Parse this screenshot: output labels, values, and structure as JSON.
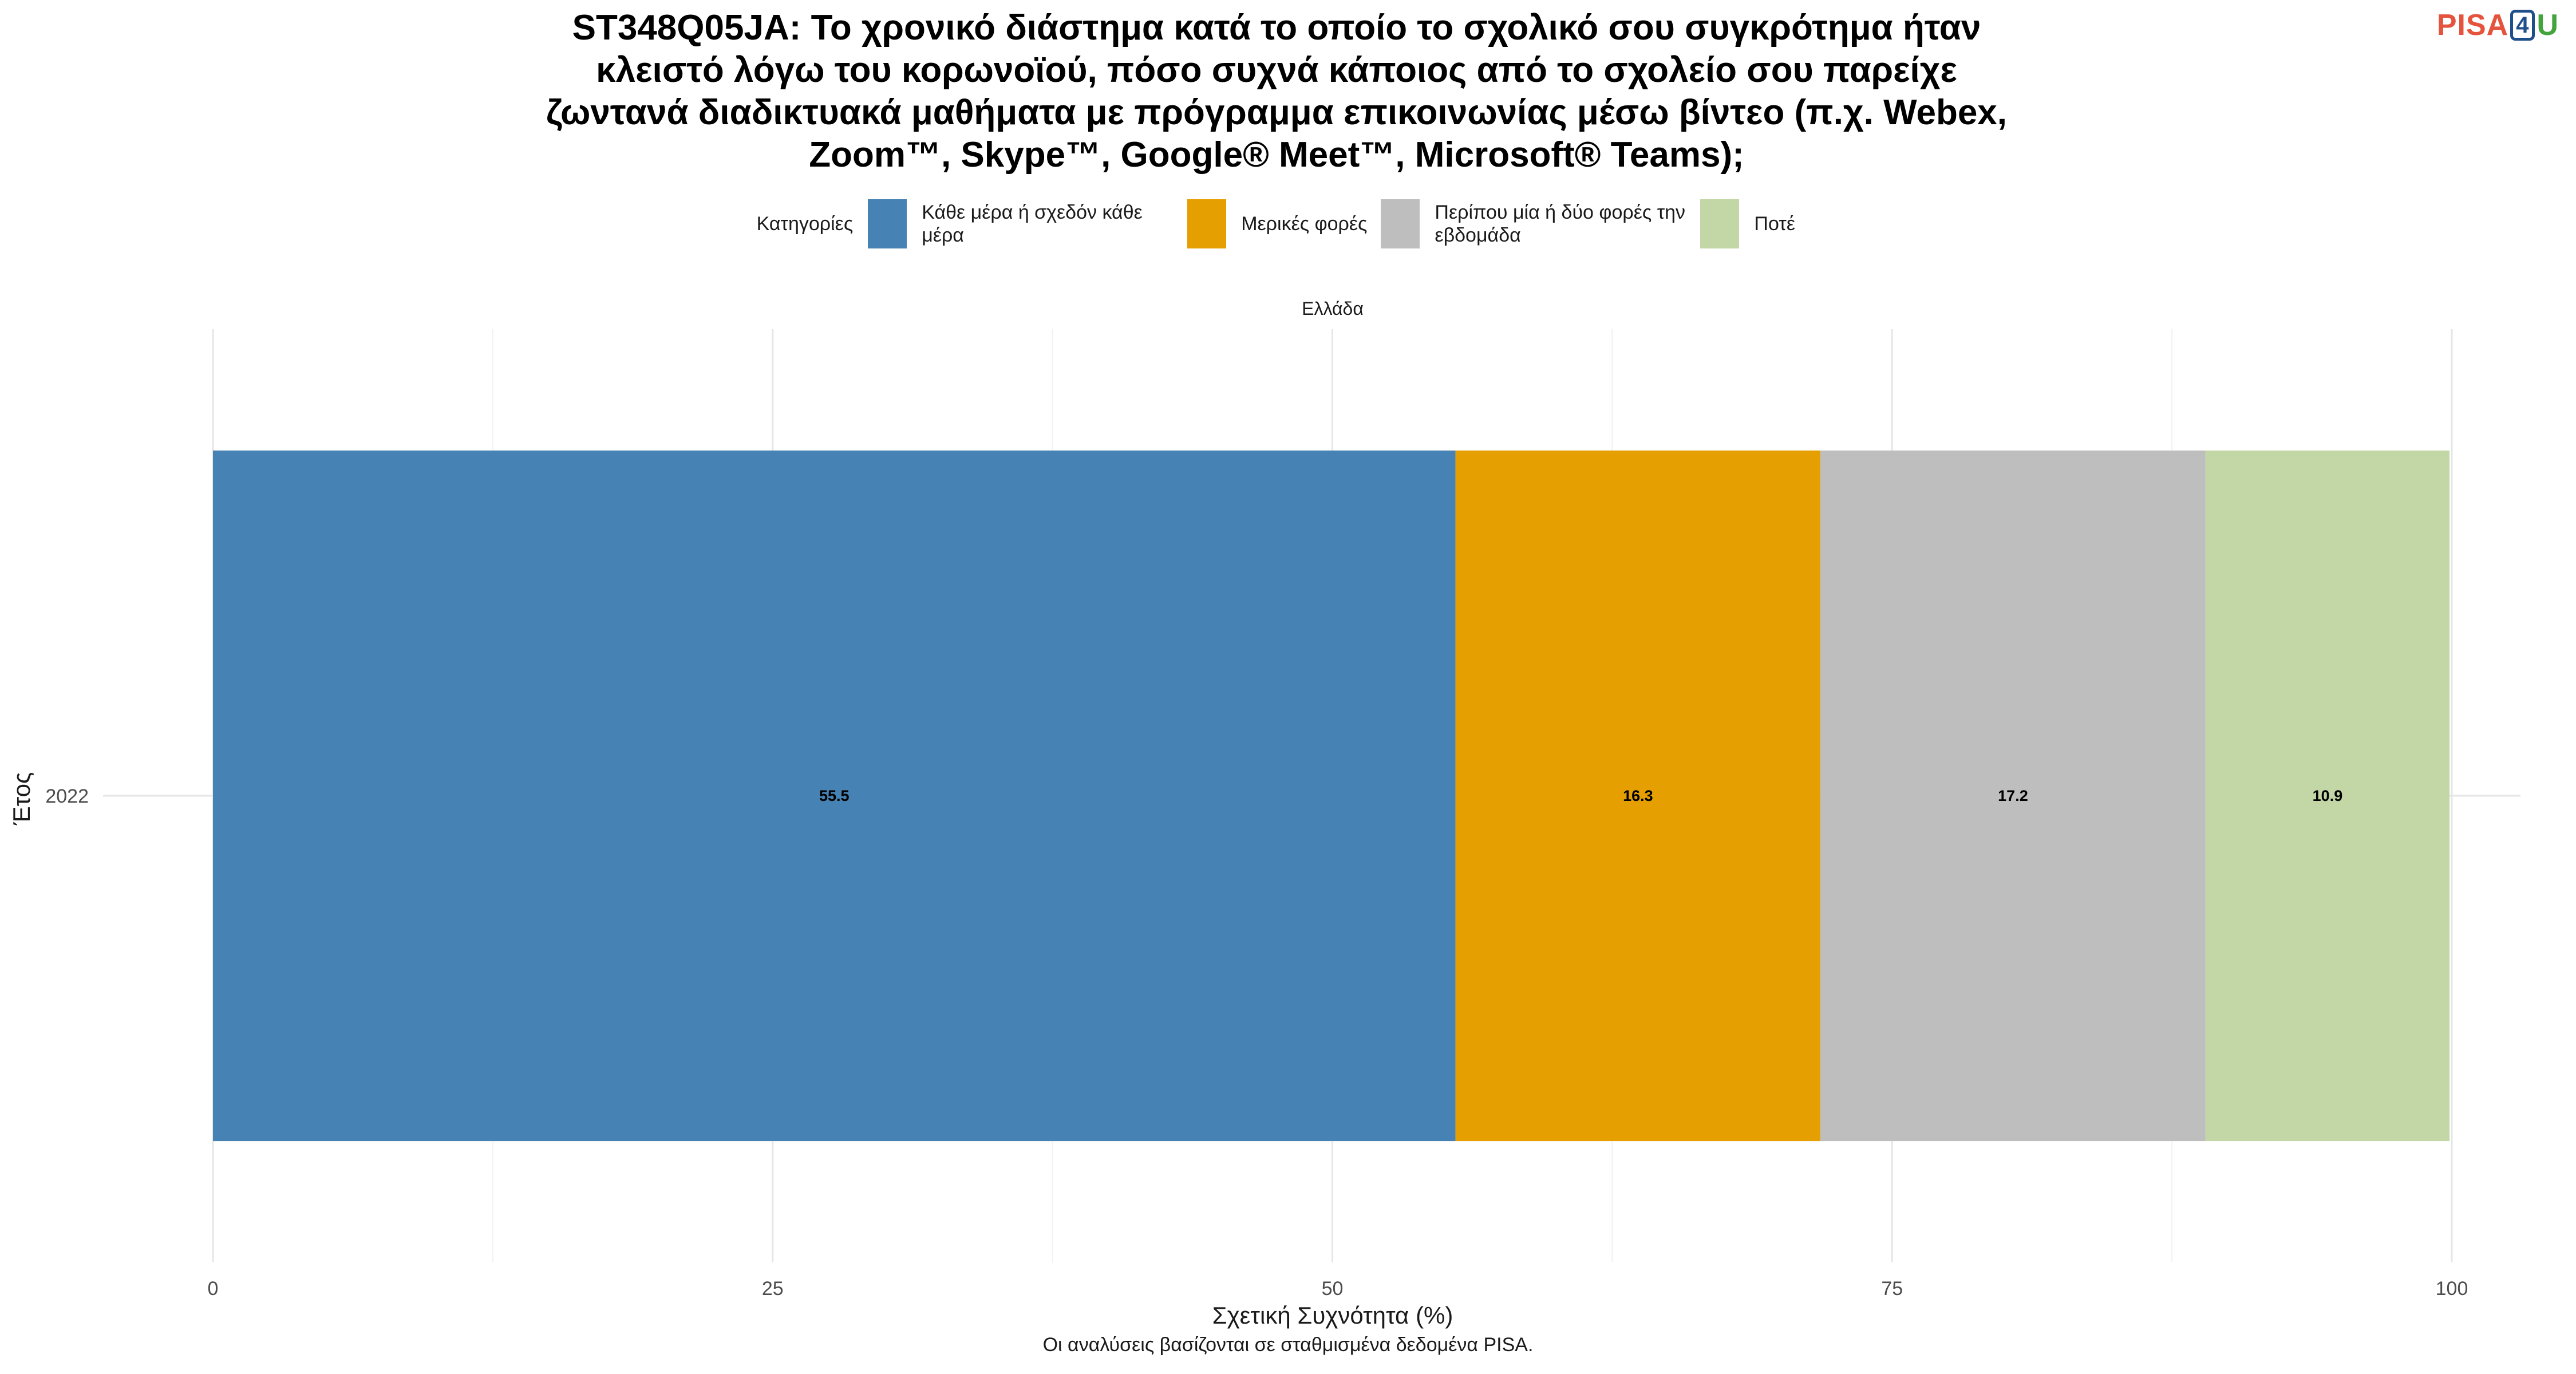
{
  "logo": {
    "left": "PISA",
    "middle": "4",
    "right": "U"
  },
  "chart_data": {
    "type": "bar",
    "orientation": "horizontal",
    "stacked": true,
    "title_lines": [
      "ST348Q05JA: Το χρονικό διάστημα κατά το οποίο το σχολικό σου συγκρότημα ήταν",
      "κλειστό λόγω του κορωνοϊού, πόσο συχνά κάποιος από το σχολείο σου παρείχε",
      "ζωντανά διαδικτυακά μαθήματα με πρόγραμμα επικοινωνίας μέσω βίντεο (π.χ. Webex,",
      "Zoom™, Skype™, Google® Meet™, Microsoft® Teams);"
    ],
    "facet_label": "Ελλάδα",
    "legend_title": "Κατηγορίες",
    "legend_position": "top",
    "categories": [
      "2022"
    ],
    "series": [
      {
        "name": "Κάθε μέρα ή σχεδόν κάθε μέρα",
        "values": [
          55.5
        ],
        "color": "#4682b4"
      },
      {
        "name": "Μερικές φορές",
        "values": [
          16.3
        ],
        "color": "#e69f00"
      },
      {
        "name": "Περίπου μία ή δύο φορές την εβδομάδα",
        "values": [
          17.2
        ],
        "color": "#bebebe"
      },
      {
        "name": "Ποτέ",
        "values": [
          10.9
        ],
        "color": "#c2d7a5"
      }
    ],
    "xlabel": "Σχετική Συχνότητα (%)",
    "ylabel": "Έτος",
    "xlim": [
      0,
      100
    ],
    "xticks": [
      0,
      25,
      50,
      75,
      100
    ],
    "grid": true
  },
  "footer": "Οι αναλύσεις βασίζονται σε σταθμισμένα δεδομένα PISA."
}
